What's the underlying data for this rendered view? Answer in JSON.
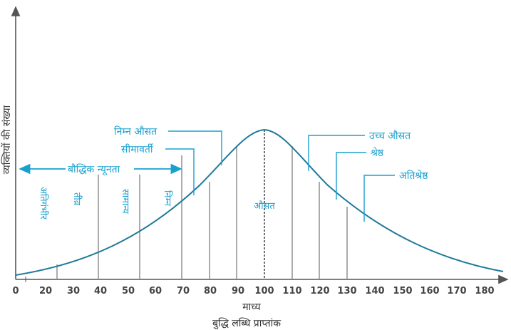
{
  "diagram": {
    "y_axis_label": "व्यक्तियों की संख्या",
    "x_axis_label": "बुद्धि लब्धि प्राप्तांक",
    "mean_label": "माध्य",
    "x_ticks": [
      "0",
      "20",
      "30",
      "40",
      "50",
      "60",
      "70",
      "80",
      "90",
      "100",
      "110",
      "120",
      "130",
      "140",
      "150",
      "160",
      "170",
      "180"
    ],
    "disability_label": "बौद्धिक न्यूनता",
    "regions": [
      "अतिगंभीर",
      "तीव्र",
      "सामान्य",
      "निम्न",
      "औसत"
    ],
    "callouts": {
      "low_average": "निम्न औसत",
      "borderline": "सीमावर्ती",
      "high_average": "उच्च औसत",
      "superior": "श्रेष्ठ",
      "very_superior": "अतिश्रेष्ठ"
    },
    "colors": {
      "accent": "#1aa0cf",
      "curve": "#1f7a99",
      "axis": "#555555",
      "divider": "#888888"
    }
  }
}
